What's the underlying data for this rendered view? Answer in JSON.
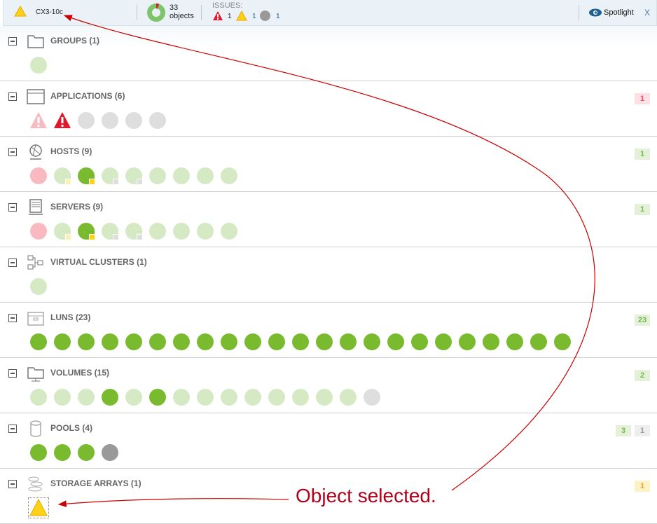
{
  "header": {
    "name": "CX3-10c",
    "objects_count": "33",
    "objects_label": "objects",
    "issues_label": "ISSUES:",
    "issues": [
      {
        "type": "critical",
        "count": "1"
      },
      {
        "type": "warning",
        "count": "1"
      },
      {
        "type": "unknown",
        "count": "1"
      }
    ],
    "spotlight_label": "Spotlight",
    "close_label": "X"
  },
  "colors": {
    "light_green": "#d5eac4",
    "green": "#7aba2e",
    "pink": "#f8b9c0",
    "grey": "#dedede",
    "dark_grey": "#999999",
    "red": "#e0182d",
    "yellow": "#fcd116"
  },
  "sections": [
    {
      "title": "GROUPS (1)",
      "icon": "folder-icon",
      "dots": [
        "lg"
      ],
      "badges": []
    },
    {
      "title": "APPLICATIONS (6)",
      "icon": "window-icon",
      "dots": [
        "tp",
        "tr",
        "gr",
        "gr",
        "gr",
        "gr"
      ],
      "badges": [
        {
          "v": "1",
          "c": "red"
        }
      ]
    },
    {
      "title": "HOSTS (9)",
      "icon": "globe-icon",
      "dots": [
        "pk",
        "lg:yl",
        "g:y",
        "lg:gs",
        "lg:gs",
        "lg",
        "lg",
        "lg",
        "lg"
      ],
      "badges": [
        {
          "v": "1",
          "c": "green"
        }
      ]
    },
    {
      "title": "SERVERS (9)",
      "icon": "server-icon",
      "dots": [
        "pk",
        "lg:yl",
        "g:y",
        "lg:gs",
        "lg:gs",
        "lg",
        "lg",
        "lg",
        "lg"
      ],
      "badges": [
        {
          "v": "1",
          "c": "green"
        }
      ]
    },
    {
      "title": "VIRTUAL CLUSTERS (1)",
      "icon": "cluster-icon",
      "dots": [
        "lg"
      ],
      "badges": []
    },
    {
      "title": "LUNS (23)",
      "icon": "lun-icon",
      "dots": [
        "g",
        "g",
        "g",
        "g",
        "g",
        "g",
        "g",
        "g",
        "g",
        "g",
        "g",
        "g",
        "g",
        "g",
        "g",
        "g",
        "g",
        "g",
        "g",
        "g",
        "g",
        "g",
        "g"
      ],
      "badges": [
        {
          "v": "23",
          "c": "green"
        }
      ]
    },
    {
      "title": "VOLUMES (15)",
      "icon": "volume-icon",
      "dots": [
        "lg",
        "lg",
        "lg",
        "g",
        "lg",
        "g",
        "lg",
        "lg",
        "lg",
        "lg",
        "lg",
        "lg",
        "lg",
        "lg",
        "gr"
      ],
      "badges": [
        {
          "v": "2",
          "c": "green"
        }
      ]
    },
    {
      "title": "POOLS (4)",
      "icon": "cylinder-icon",
      "dots": [
        "g",
        "g",
        "g",
        "dg"
      ],
      "badges": [
        {
          "v": "3",
          "c": "green"
        },
        {
          "v": "1",
          "c": "grey"
        }
      ]
    },
    {
      "title": "STORAGE ARRAYS (1)",
      "icon": "storage-array-icon",
      "dots": [
        "ty"
      ],
      "badges": [
        {
          "v": "1",
          "c": "yellow"
        }
      ]
    }
  ],
  "annotation": {
    "text": "Object selected."
  }
}
